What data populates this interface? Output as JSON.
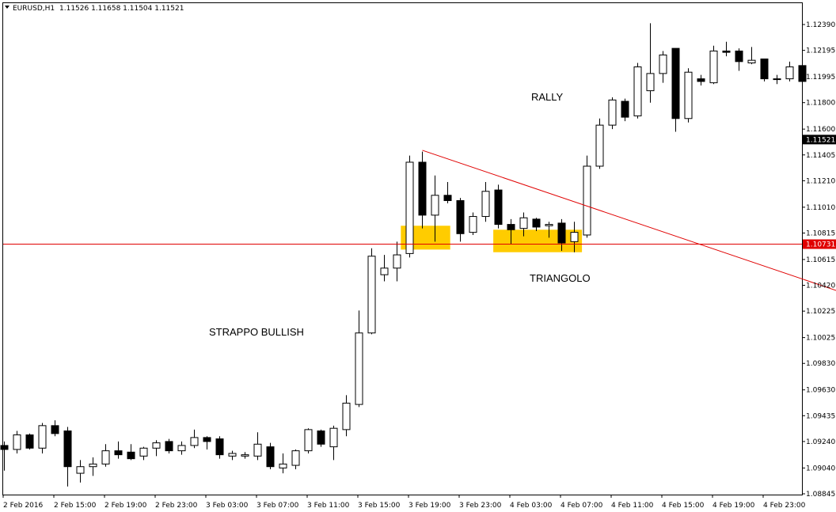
{
  "header": {
    "symbol": "EURUSD,H1",
    "ohlc": "1.11526 1.11658 1.11504 1.11521"
  },
  "chart_data": {
    "type": "candlestick",
    "symbol": "EURUSD",
    "timeframe": "H1",
    "ylim": [
      1.088,
      1.125
    ],
    "y_ticks": [
      "1.12390",
      "1.12195",
      "1.11995",
      "1.11800",
      "1.11600",
      "1.11405",
      "1.11210",
      "1.11010",
      "1.10815",
      "1.10615",
      "1.10420",
      "1.10225",
      "1.10025",
      "1.09830",
      "1.09630",
      "1.09435",
      "1.09240",
      "1.09040",
      "1.08845"
    ],
    "x_ticks": [
      "2 Feb 2016",
      "2 Feb 15:00",
      "2 Feb 19:00",
      "2 Feb 23:00",
      "3 Feb 03:00",
      "3 Feb 07:00",
      "3 Feb 11:00",
      "3 Feb 15:00",
      "3 Feb 19:00",
      "3 Feb 23:00",
      "4 Feb 03:00",
      "4 Feb 07:00",
      "4 Feb 11:00",
      "4 Feb 15:00",
      "4 Feb 19:00",
      "4 Feb 23:00"
    ],
    "current_price": "1.11521",
    "horizontal_level": "1.10731",
    "candles": [
      {
        "o": 1.0921,
        "h": 1.0924,
        "l": 1.0902,
        "c": 1.0918
      },
      {
        "o": 1.0918,
        "h": 1.0932,
        "l": 1.0915,
        "c": 1.0929
      },
      {
        "o": 1.0929,
        "h": 1.093,
        "l": 1.0918,
        "c": 1.0919
      },
      {
        "o": 1.0919,
        "h": 1.0938,
        "l": 1.0915,
        "c": 1.0936
      },
      {
        "o": 1.0936,
        "h": 1.094,
        "l": 1.0928,
        "c": 1.093
      },
      {
        "o": 1.0932,
        "h": 1.0935,
        "l": 1.089,
        "c": 1.0905
      },
      {
        "o": 1.09,
        "h": 1.091,
        "l": 1.0893,
        "c": 1.0905
      },
      {
        "o": 1.0905,
        "h": 1.0912,
        "l": 1.0898,
        "c": 1.0907
      },
      {
        "o": 1.0907,
        "h": 1.0922,
        "l": 1.0905,
        "c": 1.0917
      },
      {
        "o": 1.0917,
        "h": 1.0924,
        "l": 1.0911,
        "c": 1.0914
      },
      {
        "o": 1.0916,
        "h": 1.0922,
        "l": 1.091,
        "c": 1.0911
      },
      {
        "o": 1.0913,
        "h": 1.092,
        "l": 1.091,
        "c": 1.0919
      },
      {
        "o": 1.0919,
        "h": 1.0925,
        "l": 1.0913,
        "c": 1.0923
      },
      {
        "o": 1.0924,
        "h": 1.0926,
        "l": 1.0915,
        "c": 1.0917
      },
      {
        "o": 1.0917,
        "h": 1.0924,
        "l": 1.0914,
        "c": 1.0921
      },
      {
        "o": 1.0921,
        "h": 1.0933,
        "l": 1.0919,
        "c": 1.0927
      },
      {
        "o": 1.0927,
        "h": 1.0928,
        "l": 1.0918,
        "c": 1.0924
      },
      {
        "o": 1.0926,
        "h": 1.0928,
        "l": 1.0911,
        "c": 1.0914
      },
      {
        "o": 1.0913,
        "h": 1.0917,
        "l": 1.091,
        "c": 1.0915
      },
      {
        "o": 1.0913,
        "h": 1.0916,
        "l": 1.0911,
        "c": 1.0914
      },
      {
        "o": 1.0913,
        "h": 1.0931,
        "l": 1.091,
        "c": 1.0922
      },
      {
        "o": 1.092,
        "h": 1.0923,
        "l": 1.0903,
        "c": 1.0905
      },
      {
        "o": 1.0904,
        "h": 1.0915,
        "l": 1.09,
        "c": 1.0907
      },
      {
        "o": 1.0906,
        "h": 1.0918,
        "l": 1.0903,
        "c": 1.0917
      },
      {
        "o": 1.0917,
        "h": 1.0934,
        "l": 1.0915,
        "c": 1.0933
      },
      {
        "o": 1.0932,
        "h": 1.0933,
        "l": 1.092,
        "c": 1.0922
      },
      {
        "o": 1.092,
        "h": 1.0936,
        "l": 1.091,
        "c": 1.0934
      },
      {
        "o": 1.0933,
        "h": 1.0959,
        "l": 1.0928,
        "c": 1.0953
      },
      {
        "o": 1.0952,
        "h": 1.1023,
        "l": 1.095,
        "c": 1.1006
      },
      {
        "o": 1.1006,
        "h": 1.107,
        "l": 1.1005,
        "c": 1.1064
      },
      {
        "o": 1.105,
        "h": 1.1065,
        "l": 1.1045,
        "c": 1.1055
      },
      {
        "o": 1.1055,
        "h": 1.1075,
        "l": 1.1045,
        "c": 1.1065
      },
      {
        "o": 1.1066,
        "h": 1.114,
        "l": 1.1063,
        "c": 1.1135
      },
      {
        "o": 1.1135,
        "h": 1.1143,
        "l": 1.1085,
        "c": 1.1095
      },
      {
        "o": 1.1095,
        "h": 1.1125,
        "l": 1.1075,
        "c": 1.111
      },
      {
        "o": 1.111,
        "h": 1.112,
        "l": 1.1104,
        "c": 1.1106
      },
      {
        "o": 1.1106,
        "h": 1.1108,
        "l": 1.1075,
        "c": 1.1081
      },
      {
        "o": 1.1082,
        "h": 1.1097,
        "l": 1.108,
        "c": 1.1094
      },
      {
        "o": 1.1094,
        "h": 1.112,
        "l": 1.109,
        "c": 1.1113
      },
      {
        "o": 1.1114,
        "h": 1.1118,
        "l": 1.1085,
        "c": 1.1088
      },
      {
        "o": 1.1088,
        "h": 1.1092,
        "l": 1.1073,
        "c": 1.1084
      },
      {
        "o": 1.1085,
        "h": 1.1097,
        "l": 1.1079,
        "c": 1.1093
      },
      {
        "o": 1.1092,
        "h": 1.1093,
        "l": 1.1083,
        "c": 1.1086
      },
      {
        "o": 1.1087,
        "h": 1.109,
        "l": 1.1078,
        "c": 1.1088
      },
      {
        "o": 1.1089,
        "h": 1.1092,
        "l": 1.1068,
        "c": 1.1074
      },
      {
        "o": 1.1075,
        "h": 1.109,
        "l": 1.1067,
        "c": 1.1082
      },
      {
        "o": 1.108,
        "h": 1.114,
        "l": 1.1078,
        "c": 1.1132
      },
      {
        "o": 1.1132,
        "h": 1.1168,
        "l": 1.113,
        "c": 1.1163
      },
      {
        "o": 1.1163,
        "h": 1.1184,
        "l": 1.116,
        "c": 1.1182
      },
      {
        "o": 1.1181,
        "h": 1.1183,
        "l": 1.1166,
        "c": 1.1169
      },
      {
        "o": 1.117,
        "h": 1.121,
        "l": 1.1168,
        "c": 1.1207
      },
      {
        "o": 1.1189,
        "h": 1.124,
        "l": 1.118,
        "c": 1.1202
      },
      {
        "o": 1.1202,
        "h": 1.1219,
        "l": 1.1195,
        "c": 1.1216
      },
      {
        "o": 1.1221,
        "h": 1.1221,
        "l": 1.1158,
        "c": 1.1168
      },
      {
        "o": 1.1168,
        "h": 1.1206,
        "l": 1.1165,
        "c": 1.1203
      },
      {
        "o": 1.1198,
        "h": 1.1201,
        "l": 1.1193,
        "c": 1.1196
      },
      {
        "o": 1.1195,
        "h": 1.1223,
        "l": 1.1194,
        "c": 1.1219
      },
      {
        "o": 1.1219,
        "h": 1.1226,
        "l": 1.1215,
        "c": 1.1218
      },
      {
        "o": 1.1219,
        "h": 1.1221,
        "l": 1.1204,
        "c": 1.1211
      },
      {
        "o": 1.121,
        "h": 1.1222,
        "l": 1.1209,
        "c": 1.1212
      },
      {
        "o": 1.1213,
        "h": 1.1213,
        "l": 1.1196,
        "c": 1.1198
      },
      {
        "o": 1.1198,
        "h": 1.1201,
        "l": 1.1194,
        "c": 1.1198
      },
      {
        "o": 1.1198,
        "h": 1.1211,
        "l": 1.1196,
        "c": 1.1207
      },
      {
        "o": 1.1208,
        "h": 1.1219,
        "l": 1.1192,
        "c": 1.1196
      }
    ],
    "annotations": {
      "rally": "RALLY",
      "triangolo": "TRIANGOLO",
      "strappo": "STRAPPO BULLISH"
    },
    "trendline": {
      "from": {
        "candle": 33,
        "price": 1.1144
      },
      "to": {
        "candle": 76.5,
        "price": 1.1003
      }
    },
    "highlight_zones": [
      {
        "from_candle": 31.3,
        "to_candle": 35.2,
        "top": 1.1087,
        "bottom": 1.1069
      },
      {
        "from_candle": 38.6,
        "to_candle": 45.6,
        "top": 1.1084,
        "bottom": 1.1067
      }
    ],
    "colors": {
      "line": "#e00000",
      "highlight": "#ffcc00",
      "bull_fill": "#ffffff",
      "bear_fill": "#000000",
      "current_tag_bg": "#000000",
      "level_tag_bg": "#e00000"
    }
  }
}
